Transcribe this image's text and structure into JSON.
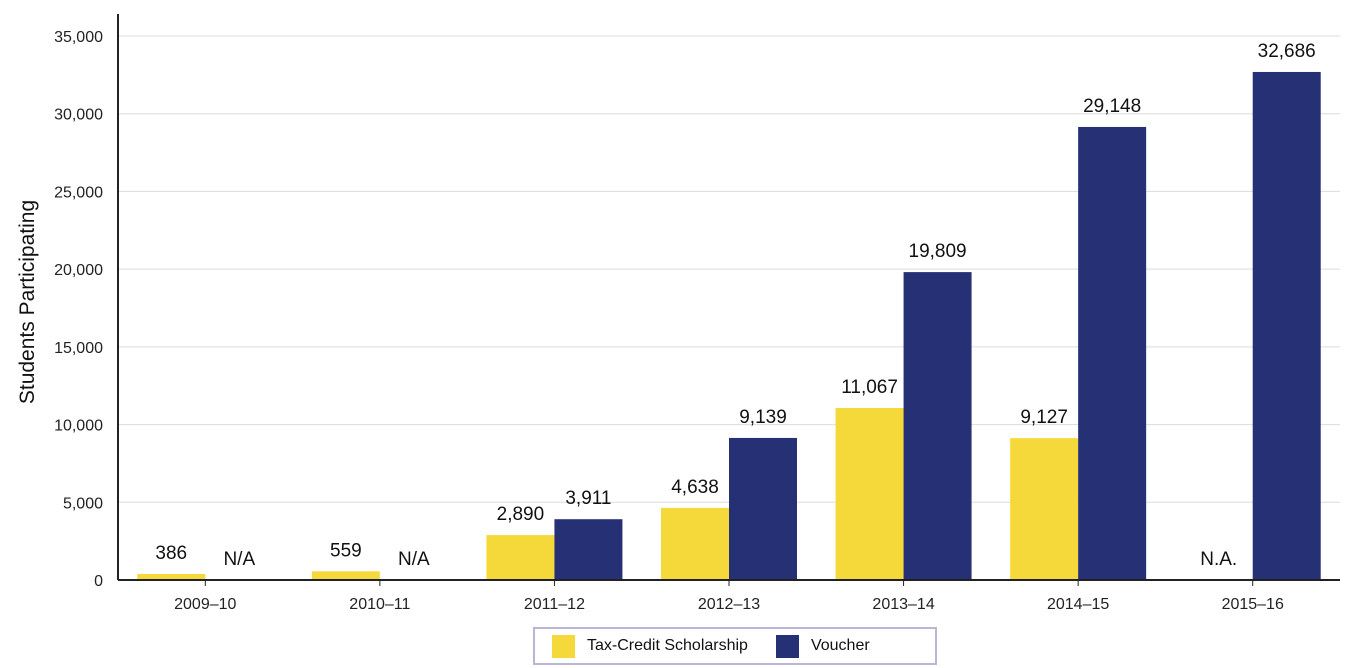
{
  "chart_data": {
    "type": "bar",
    "title": "",
    "xlabel": "",
    "ylabel": "Students Participating",
    "ylim": [
      0,
      35000
    ],
    "yticks": [
      0,
      5000,
      10000,
      15000,
      20000,
      25000,
      30000,
      35000
    ],
    "ytick_labels": [
      "0",
      "5,000",
      "10,000",
      "15,000",
      "20,000",
      "25,000",
      "30,000",
      "35,000"
    ],
    "grid": true,
    "legend_position": "bottom-center",
    "categories": [
      "2009–10",
      "2010–11",
      "2011–12",
      "2012–13",
      "2013–14",
      "2014–15",
      "2015–16"
    ],
    "series": [
      {
        "name": "Tax-Credit Scholarship",
        "color": "#f5d93a",
        "values": [
          386,
          559,
          2890,
          4638,
          11067,
          9127,
          null
        ],
        "labels": [
          "386",
          "559",
          "2,890",
          "4,638",
          "11,067",
          "9,127",
          "N.A."
        ]
      },
      {
        "name": "Voucher",
        "color": "#263075",
        "values": [
          null,
          null,
          3911,
          9139,
          19809,
          29148,
          32686
        ],
        "labels": [
          "N/A",
          "N/A",
          "3,911",
          "9,139",
          "19,809",
          "29,148",
          "32,686"
        ]
      }
    ]
  }
}
